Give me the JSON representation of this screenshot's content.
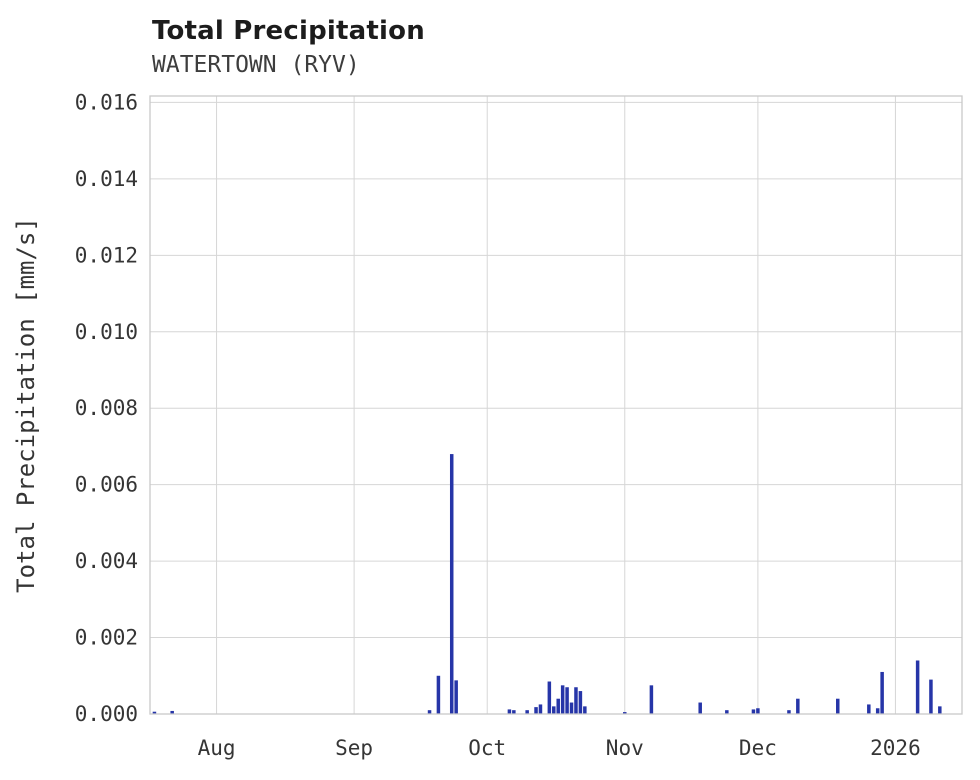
{
  "header": {
    "title": "Total Precipitation",
    "subtitle": "WATERTOWN (RYV)"
  },
  "chart_data": {
    "type": "bar",
    "title": "Total Precipitation",
    "subtitle": "WATERTOWN (RYV)",
    "xlabel": "",
    "ylabel": "Total Precipitation [mm/s]",
    "ylim": [
      0,
      0.016
    ],
    "grid": true,
    "bar_color": "#2635a8",
    "grid_color": "#d6d6d6",
    "border_color": "#c9c9c9",
    "x_range": [
      "2025-07-17",
      "2026-01-16"
    ],
    "yticks": [
      0.0,
      0.002,
      0.004,
      0.006,
      0.008,
      0.01,
      0.012,
      0.014,
      0.016
    ],
    "ytick_labels": [
      "0.000",
      "0.002",
      "0.004",
      "0.006",
      "0.008",
      "0.010",
      "0.012",
      "0.014",
      "0.016"
    ],
    "xticks": [
      {
        "date": "2025-08-01",
        "label": "Aug"
      },
      {
        "date": "2025-09-01",
        "label": "Sep"
      },
      {
        "date": "2025-10-01",
        "label": "Oct"
      },
      {
        "date": "2025-11-01",
        "label": "Nov"
      },
      {
        "date": "2025-12-01",
        "label": "Dec"
      },
      {
        "date": "2026-01-01",
        "label": "2026"
      }
    ],
    "points": [
      {
        "date": "2025-07-18",
        "value": 6e-05
      },
      {
        "date": "2025-07-22",
        "value": 8e-05
      },
      {
        "date": "2025-09-18",
        "value": 0.0001
      },
      {
        "date": "2025-09-20",
        "value": 0.001
      },
      {
        "date": "2025-09-23",
        "value": 0.0068
      },
      {
        "date": "2025-09-24",
        "value": 0.00088
      },
      {
        "date": "2025-10-06",
        "value": 0.00012
      },
      {
        "date": "2025-10-07",
        "value": 0.0001
      },
      {
        "date": "2025-10-10",
        "value": 0.0001
      },
      {
        "date": "2025-10-12",
        "value": 0.00018
      },
      {
        "date": "2025-10-13",
        "value": 0.00025
      },
      {
        "date": "2025-10-15",
        "value": 0.00085
      },
      {
        "date": "2025-10-16",
        "value": 0.0002
      },
      {
        "date": "2025-10-17",
        "value": 0.0004
      },
      {
        "date": "2025-10-18",
        "value": 0.00075
      },
      {
        "date": "2025-10-19",
        "value": 0.0007
      },
      {
        "date": "2025-10-20",
        "value": 0.0003
      },
      {
        "date": "2025-10-21",
        "value": 0.0007
      },
      {
        "date": "2025-10-22",
        "value": 0.0006
      },
      {
        "date": "2025-10-23",
        "value": 0.0002
      },
      {
        "date": "2025-11-01",
        "value": 5e-05
      },
      {
        "date": "2025-11-07",
        "value": 0.00075
      },
      {
        "date": "2025-11-18",
        "value": 0.0003
      },
      {
        "date": "2025-11-24",
        "value": 0.0001
      },
      {
        "date": "2025-11-30",
        "value": 0.00012
      },
      {
        "date": "2025-12-01",
        "value": 0.00015
      },
      {
        "date": "2025-12-08",
        "value": 0.0001
      },
      {
        "date": "2025-12-10",
        "value": 0.0004
      },
      {
        "date": "2025-12-19",
        "value": 0.0004
      },
      {
        "date": "2025-12-26",
        "value": 0.00025
      },
      {
        "date": "2025-12-28",
        "value": 0.00015
      },
      {
        "date": "2025-12-29",
        "value": 0.0011
      },
      {
        "date": "2026-01-06",
        "value": 0.0014
      },
      {
        "date": "2026-01-09",
        "value": 0.0009
      },
      {
        "date": "2026-01-11",
        "value": 0.0002
      }
    ]
  }
}
